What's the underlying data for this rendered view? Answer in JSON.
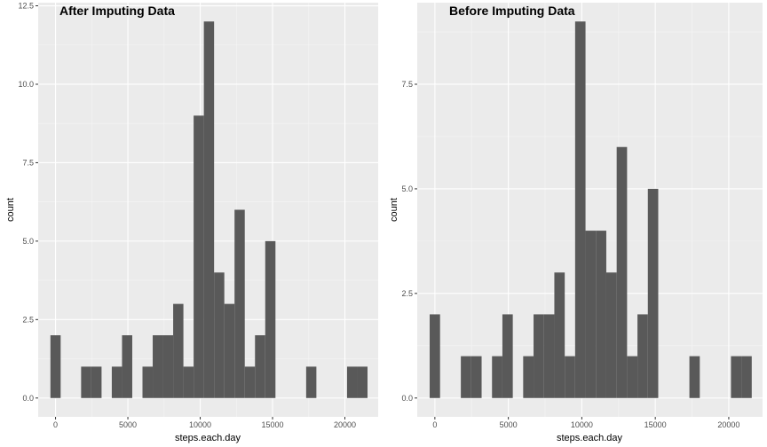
{
  "chart_data": [
    {
      "type": "bar",
      "title": "After Imputing Data",
      "xlabel": "steps.each.day",
      "ylabel": "count",
      "bin_width": 707,
      "bin_centers": [
        0,
        2121,
        2828,
        4242,
        4949,
        6363,
        7070,
        7777,
        8484,
        9191,
        9898,
        10605,
        11312,
        12019,
        12726,
        13433,
        14140,
        14847,
        17675,
        20503,
        21210
      ],
      "values": [
        2,
        1,
        1,
        1,
        2,
        1,
        2,
        2,
        3,
        1,
        9,
        12,
        4,
        3,
        6,
        1,
        2,
        5,
        1,
        1,
        1
      ],
      "xlim": [
        -1200,
        22300
      ],
      "ylim": [
        -0.6,
        12.6
      ],
      "x_ticks": [
        0,
        5000,
        10000,
        15000,
        20000
      ],
      "x_tick_labels": [
        "0",
        "5000",
        "10000",
        "15000",
        "20000"
      ],
      "y_ticks": [
        0,
        2.5,
        5,
        7.5,
        10,
        12.5
      ],
      "y_tick_labels": [
        "0.0",
        "2.5",
        "5.0",
        "7.5",
        "10.0",
        "12.5"
      ],
      "grid": true,
      "bar_color": "#595959",
      "panel_color": "#ebebeb"
    },
    {
      "type": "bar",
      "title": "Before Imputing Data",
      "xlabel": "steps.each.day",
      "ylabel": "count",
      "bin_width": 707,
      "bin_centers": [
        0,
        2121,
        2828,
        4242,
        4949,
        6363,
        7070,
        7777,
        8484,
        9191,
        9898,
        10605,
        11312,
        12019,
        12726,
        13433,
        14140,
        14847,
        17675,
        20503,
        21210
      ],
      "values": [
        2,
        1,
        1,
        1,
        2,
        1,
        2,
        2,
        3,
        1,
        9,
        4,
        4,
        3,
        6,
        1,
        2,
        5,
        1,
        1,
        1
      ],
      "xlim": [
        -1200,
        22300
      ],
      "ylim": [
        -0.45,
        9.45
      ],
      "x_ticks": [
        0,
        5000,
        10000,
        15000,
        20000
      ],
      "x_tick_labels": [
        "0",
        "5000",
        "10000",
        "15000",
        "20000"
      ],
      "y_ticks": [
        0,
        2.5,
        5,
        7.5
      ],
      "y_tick_labels": [
        "0.0",
        "2.5",
        "5.0",
        "7.5"
      ],
      "grid": true,
      "bar_color": "#595959",
      "panel_color": "#ebebeb"
    }
  ]
}
